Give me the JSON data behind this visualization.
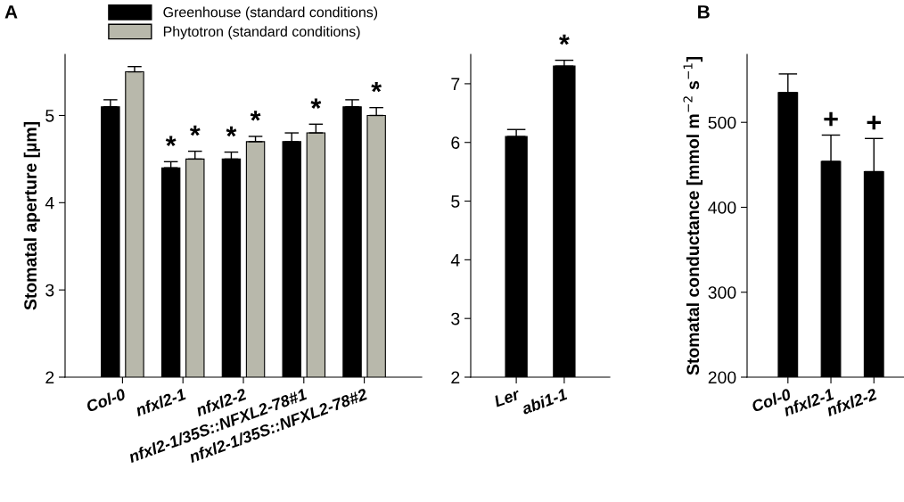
{
  "chart_data": [
    {
      "type": "bar",
      "title": "A",
      "ylabel": "Stomatal aperture [µm]",
      "categories": [
        "Col-0",
        "nfxl2-1",
        "nfxl2-2",
        "nfxl2-1/35S::NFXL2-78#1",
        "nfxl2-1/35S::NFXL2-78#2"
      ],
      "series": [
        {
          "name": "Greenhouse (standard conditions)",
          "color": "#000000",
          "values": [
            5.1,
            4.4,
            4.5,
            4.7,
            5.1
          ],
          "errors": [
            [
              5.1,
              5.18
            ],
            [
              4.4,
              4.47
            ],
            [
              4.5,
              4.58
            ],
            [
              4.7,
              4.8
            ],
            [
              5.1,
              5.18
            ]
          ],
          "value_labels": [
            null,
            "*",
            "*",
            null,
            null
          ]
        },
        {
          "name": "Phytotron (standard conditions)",
          "color": "#b8b8ab",
          "values": [
            5.5,
            4.5,
            4.7,
            4.8,
            5.0
          ],
          "errors": [
            [
              5.5,
              5.56
            ],
            [
              4.5,
              4.59
            ],
            [
              4.7,
              4.76
            ],
            [
              4.8,
              4.9
            ],
            [
              5.0,
              5.09
            ]
          ],
          "value_labels": [
            null,
            "*",
            "*",
            "*",
            "*"
          ]
        }
      ],
      "ylim": [
        2,
        5.7
      ],
      "yticks": [
        2,
        3,
        4,
        5
      ],
      "grid": false,
      "legend": "top"
    },
    {
      "type": "bar",
      "categories": [
        "Ler",
        "abi1-1"
      ],
      "series": [
        {
          "color": "#000000",
          "values": [
            6.1,
            7.3
          ],
          "errors": [
            [
              6.1,
              6.22
            ],
            [
              7.3,
              7.4
            ]
          ],
          "value_labels": [
            null,
            "*"
          ]
        }
      ],
      "ylim": [
        2,
        7.5
      ],
      "yticks": [
        2,
        3,
        4,
        5,
        6,
        7
      ],
      "grid": false
    },
    {
      "type": "bar",
      "title": "B",
      "ylabel": "Stomatal conductance [mmol m$^{−2}$ s$^{−1}$]",
      "categories": [
        "Col-0",
        "nfxl2-1",
        "nfxl2-2"
      ],
      "series": [
        {
          "color": "#000000",
          "values": [
            535,
            454,
            442
          ],
          "errors": [
            [
              535,
              557
            ],
            [
              454,
              485
            ],
            [
              442,
              481
            ]
          ],
          "value_labels": [
            null,
            "+",
            "+"
          ]
        }
      ],
      "ylim": [
        200,
        580
      ],
      "yticks": [
        200,
        300,
        400,
        500
      ],
      "grid": false
    }
  ]
}
